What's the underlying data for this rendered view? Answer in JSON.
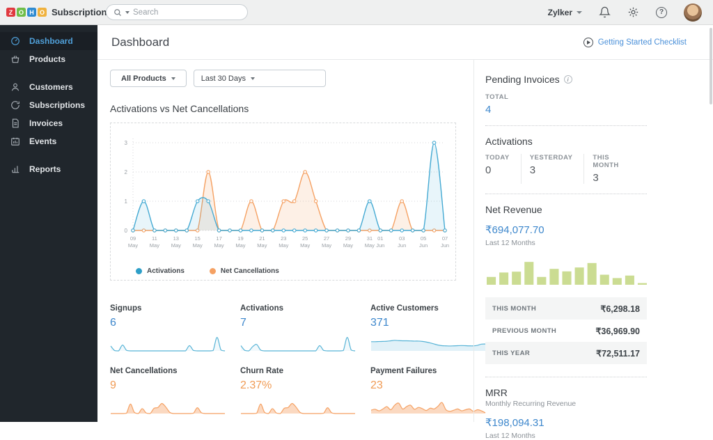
{
  "topbar": {
    "logo_letters": [
      {
        "ch": "Z",
        "color": "#e0393f"
      },
      {
        "ch": "O",
        "color": "#6fbe49"
      },
      {
        "ch": "H",
        "color": "#2f8bd1"
      },
      {
        "ch": "O",
        "color": "#f0b23e"
      }
    ],
    "brand": "Subscriptions",
    "search_placeholder": "Search",
    "org_name": "Zylker"
  },
  "sidebar": {
    "items": [
      {
        "label": "Dashboard",
        "icon": "gauge-icon",
        "active": true
      },
      {
        "label": "Products",
        "icon": "basket-icon",
        "active": false
      },
      {
        "label": "Customers",
        "icon": "person-icon",
        "active": false
      },
      {
        "label": "Subscriptions",
        "icon": "refresh-icon",
        "active": false
      },
      {
        "label": "Invoices",
        "icon": "document-icon",
        "active": false
      },
      {
        "label": "Events",
        "icon": "calendar-icon",
        "active": false
      },
      {
        "label": "Reports",
        "icon": "bar-chart-icon",
        "active": false
      }
    ]
  },
  "header": {
    "title": "Dashboard",
    "checklist_label": "Getting Started Checklist"
  },
  "filters": {
    "product": "All Products",
    "range": "Last 30 Days"
  },
  "main_section_title": "Activations vs Net Cancellations",
  "stats": [
    {
      "label": "Signups",
      "value": "6",
      "color": "#3d87cc",
      "spark": "spark-signups"
    },
    {
      "label": "Activations",
      "value": "7",
      "color": "#3d87cc",
      "spark": "spark-activations"
    },
    {
      "label": "Active Customers",
      "value": "371",
      "color": "#3d87cc",
      "spark": "spark-active-customers"
    },
    {
      "label": "Net Cancellations",
      "value": "9",
      "color": "#f09b55",
      "spark": "spark-net-cancellations"
    },
    {
      "label": "Churn Rate",
      "value": "2.37%",
      "color": "#f09b55",
      "spark": "spark-churn-rate"
    },
    {
      "label": "Payment Failures",
      "value": "23",
      "color": "#f09b55",
      "spark": "spark-payment-failures"
    }
  ],
  "right_panel": {
    "pending_invoices": {
      "title": "Pending Invoices",
      "label": "TOTAL",
      "value": "4"
    },
    "activations": {
      "title": "Activations",
      "cols": [
        {
          "label": "TODAY",
          "value": "0"
        },
        {
          "label": "YESTERDAY",
          "value": "3"
        },
        {
          "label": "THIS MONTH",
          "value": "3"
        }
      ]
    },
    "net_revenue": {
      "title": "Net Revenue",
      "amount": "₹694,077.70",
      "period": "Last 12 Months"
    },
    "revenue_table": [
      {
        "label": "THIS MONTH",
        "value": "₹6,298.18"
      },
      {
        "label": "PREVIOUS MONTH",
        "value": "₹36,969.90"
      },
      {
        "label": "THIS YEAR",
        "value": "₹72,511.17"
      }
    ],
    "mrr": {
      "title": "MRR",
      "subtitle": "Monthly Recurring Revenue",
      "amount": "₹198,094.31",
      "period": "Last 12 Months"
    }
  },
  "chart_data": [
    {
      "id": "main-chart",
      "type": "line",
      "title": "Activations vs Net Cancellations",
      "x_days": [
        "09 May",
        "10 May",
        "11 May",
        "12 May",
        "13 May",
        "14 May",
        "15 May",
        "16 May",
        "17 May",
        "18 May",
        "19 May",
        "20 May",
        "21 May",
        "22 May",
        "23 May",
        "24 May",
        "25 May",
        "26 May",
        "27 May",
        "28 May",
        "29 May",
        "30 May",
        "31 May",
        "01 Jun",
        "02 Jun",
        "03 Jun",
        "04 Jun",
        "05 Jun",
        "06 Jun",
        "07 Jun"
      ],
      "ticks": [
        {
          "i": 0,
          "d": "09",
          "m": "May"
        },
        {
          "i": 2,
          "d": "11",
          "m": "May"
        },
        {
          "i": 4,
          "d": "13",
          "m": "May"
        },
        {
          "i": 6,
          "d": "15",
          "m": "May"
        },
        {
          "i": 8,
          "d": "17",
          "m": "May"
        },
        {
          "i": 10,
          "d": "19",
          "m": "May"
        },
        {
          "i": 12,
          "d": "21",
          "m": "May"
        },
        {
          "i": 14,
          "d": "23",
          "m": "May"
        },
        {
          "i": 16,
          "d": "25",
          "m": "May"
        },
        {
          "i": 18,
          "d": "27",
          "m": "May"
        },
        {
          "i": 20,
          "d": "29",
          "m": "May"
        },
        {
          "i": 22,
          "d": "31",
          "m": "May"
        },
        {
          "i": 23,
          "d": "01",
          "m": "Jun"
        },
        {
          "i": 25,
          "d": "03",
          "m": "Jun"
        },
        {
          "i": 27,
          "d": "05",
          "m": "Jun"
        },
        {
          "i": 29,
          "d": "07",
          "m": "Jun"
        }
      ],
      "yticks": [
        0,
        1,
        2,
        3
      ],
      "ylim": [
        0,
        3
      ],
      "grid": "dotted-horizontal",
      "legend_position": "bottom-left",
      "series": [
        {
          "name": "Net Cancellations",
          "color": "#f5a163",
          "fill_opacity": 0.16,
          "values": [
            0,
            0,
            0,
            0,
            0,
            0,
            0,
            2,
            0,
            0,
            0,
            1,
            0,
            0,
            1,
            1,
            2,
            1,
            0,
            0,
            0,
            0,
            0,
            0,
            0,
            1,
            0,
            0,
            0,
            0
          ]
        },
        {
          "name": "Activations",
          "color": "#45aad3",
          "fill_opacity": 0.12,
          "values": [
            0,
            1,
            0,
            0,
            0,
            0,
            1,
            1,
            0,
            0,
            0,
            0,
            0,
            0,
            0,
            0,
            0,
            0,
            0,
            0,
            0,
            0,
            1,
            0,
            0,
            0,
            0,
            0,
            3,
            0
          ]
        }
      ],
      "legend_order": [
        "Activations",
        "Net Cancellations"
      ]
    },
    {
      "id": "spark-signups",
      "type": "sparkline",
      "color": "#56b3d6",
      "fill_opacity": 0.08,
      "values": [
        0.32,
        0.02,
        0,
        0.38,
        0.04,
        0,
        0,
        0,
        0,
        0,
        0,
        0,
        0,
        0,
        0,
        0,
        0,
        0,
        0,
        0,
        0.34,
        0.03,
        0,
        0,
        0,
        0,
        0.02,
        0.88,
        0.06,
        0
      ]
    },
    {
      "id": "spark-activations",
      "type": "sparkline",
      "color": "#56b3d6",
      "fill_opacity": 0.08,
      "values": [
        0.34,
        0.03,
        0,
        0.28,
        0.42,
        0.05,
        0,
        0,
        0,
        0,
        0,
        0,
        0,
        0,
        0,
        0,
        0,
        0,
        0,
        0,
        0.34,
        0.03,
        0,
        0,
        0,
        0,
        0.02,
        0.88,
        0.06,
        0
      ]
    },
    {
      "id": "spark-active-customers",
      "type": "sparkline",
      "color": "#56b3d6",
      "fill_opacity": 0.18,
      "values": [
        0.6,
        0.6,
        0.61,
        0.62,
        0.63,
        0.66,
        0.69,
        0.67,
        0.66,
        0.66,
        0.65,
        0.64,
        0.64,
        0.62,
        0.58,
        0.52,
        0.45,
        0.38,
        0.34,
        0.33,
        0.32,
        0.33,
        0.34,
        0.35,
        0.34,
        0.33,
        0.33,
        0.36,
        0.44,
        0.45
      ]
    },
    {
      "id": "spark-net-cancellations",
      "type": "sparkline",
      "color": "#f5a163",
      "fill_opacity": 0.4,
      "values": [
        0,
        0,
        0,
        0,
        0.02,
        0.62,
        0.08,
        0,
        0.32,
        0.04,
        0,
        0.34,
        0.4,
        0.66,
        0.42,
        0.08,
        0,
        0,
        0,
        0,
        0,
        0.02,
        0.38,
        0.06,
        0,
        0,
        0,
        0,
        0,
        0
      ]
    },
    {
      "id": "spark-churn-rate",
      "type": "sparkline",
      "color": "#f5a163",
      "fill_opacity": 0.4,
      "values": [
        0,
        0,
        0,
        0,
        0.02,
        0.62,
        0.08,
        0,
        0.32,
        0.04,
        0,
        0.34,
        0.4,
        0.66,
        0.42,
        0.08,
        0,
        0,
        0,
        0,
        0,
        0.02,
        0.38,
        0.06,
        0,
        0,
        0,
        0,
        0,
        0
      ]
    },
    {
      "id": "spark-payment-failures",
      "type": "sparkline",
      "color": "#f5a163",
      "fill_opacity": 0.4,
      "values": [
        0.22,
        0.28,
        0.18,
        0.3,
        0.45,
        0.25,
        0.55,
        0.68,
        0.3,
        0.45,
        0.55,
        0.28,
        0.4,
        0.32,
        0.2,
        0.35,
        0.3,
        0.48,
        0.72,
        0.25,
        0.15,
        0.22,
        0.3,
        0.18,
        0.25,
        0.3,
        0.15,
        0.25,
        0.18,
        0.05
      ]
    },
    {
      "id": "revenue-bars",
      "type": "bar",
      "color": "#cbdc92",
      "title": "Net Revenue Last 12 Months (relative %)",
      "values": [
        28,
        44,
        47,
        82,
        28,
        57,
        48,
        62,
        78,
        36,
        24,
        33,
        6
      ]
    }
  ]
}
